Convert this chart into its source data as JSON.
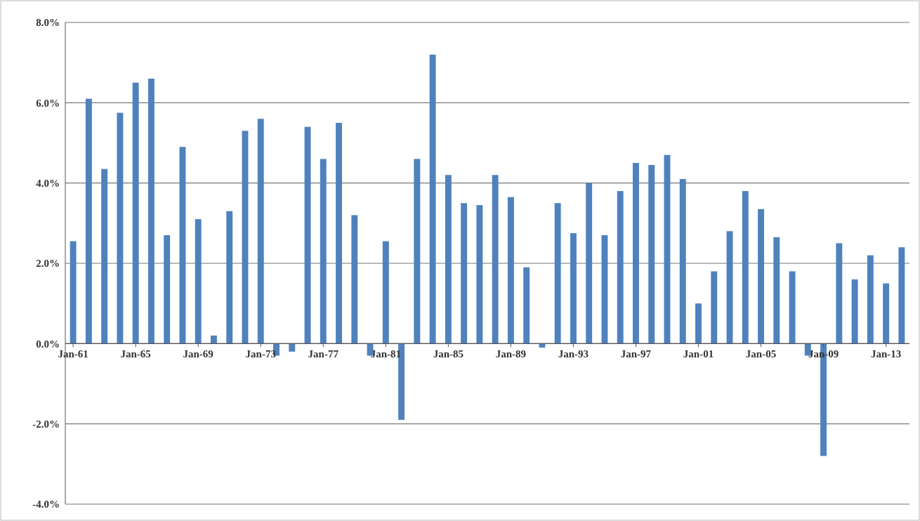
{
  "chart_data": {
    "type": "bar",
    "categories": [
      "Jan-61",
      null,
      null,
      null,
      "Jan-65",
      null,
      null,
      null,
      "Jan-69",
      null,
      null,
      null,
      "Jan-73",
      null,
      null,
      null,
      "Jan-77",
      null,
      null,
      null,
      "Jan-81",
      null,
      null,
      null,
      "Jan-85",
      null,
      null,
      null,
      "Jan-89",
      null,
      null,
      null,
      "Jan-93",
      null,
      null,
      null,
      "Jan-97",
      null,
      null,
      null,
      "Jan-01",
      null,
      null,
      null,
      "Jan-05",
      null,
      null,
      null,
      "Jan-09",
      null,
      null,
      null,
      "Jan-13",
      null
    ],
    "values": [
      2.55,
      6.1,
      4.35,
      5.75,
      6.5,
      6.6,
      2.7,
      4.9,
      3.1,
      0.2,
      3.3,
      5.3,
      5.6,
      -0.3,
      -0.2,
      5.4,
      4.6,
      5.5,
      3.2,
      -0.3,
      2.55,
      -1.9,
      4.6,
      7.2,
      4.2,
      3.5,
      3.45,
      4.2,
      3.65,
      1.9,
      -0.1,
      3.5,
      2.75,
      4.0,
      2.7,
      3.8,
      4.5,
      4.45,
      4.7,
      4.1,
      1.0,
      1.8,
      2.8,
      3.8,
      3.35,
      2.65,
      1.8,
      -0.3,
      -2.8,
      2.5,
      1.6,
      2.2,
      1.5,
      2.4
    ],
    "color": "#4f81bd",
    "ylim": [
      -4,
      8
    ],
    "yticks": [
      {
        "value": -4,
        "label": "-4.0%"
      },
      {
        "value": -2,
        "label": "-2.0%"
      },
      {
        "value": 0,
        "label": "0.0%"
      },
      {
        "value": 2,
        "label": "2.0%"
      },
      {
        "value": 4,
        "label": "4.0%"
      },
      {
        "value": 6,
        "label": "6.0%"
      },
      {
        "value": 8,
        "label": "8.0%"
      }
    ],
    "grid": "y"
  }
}
